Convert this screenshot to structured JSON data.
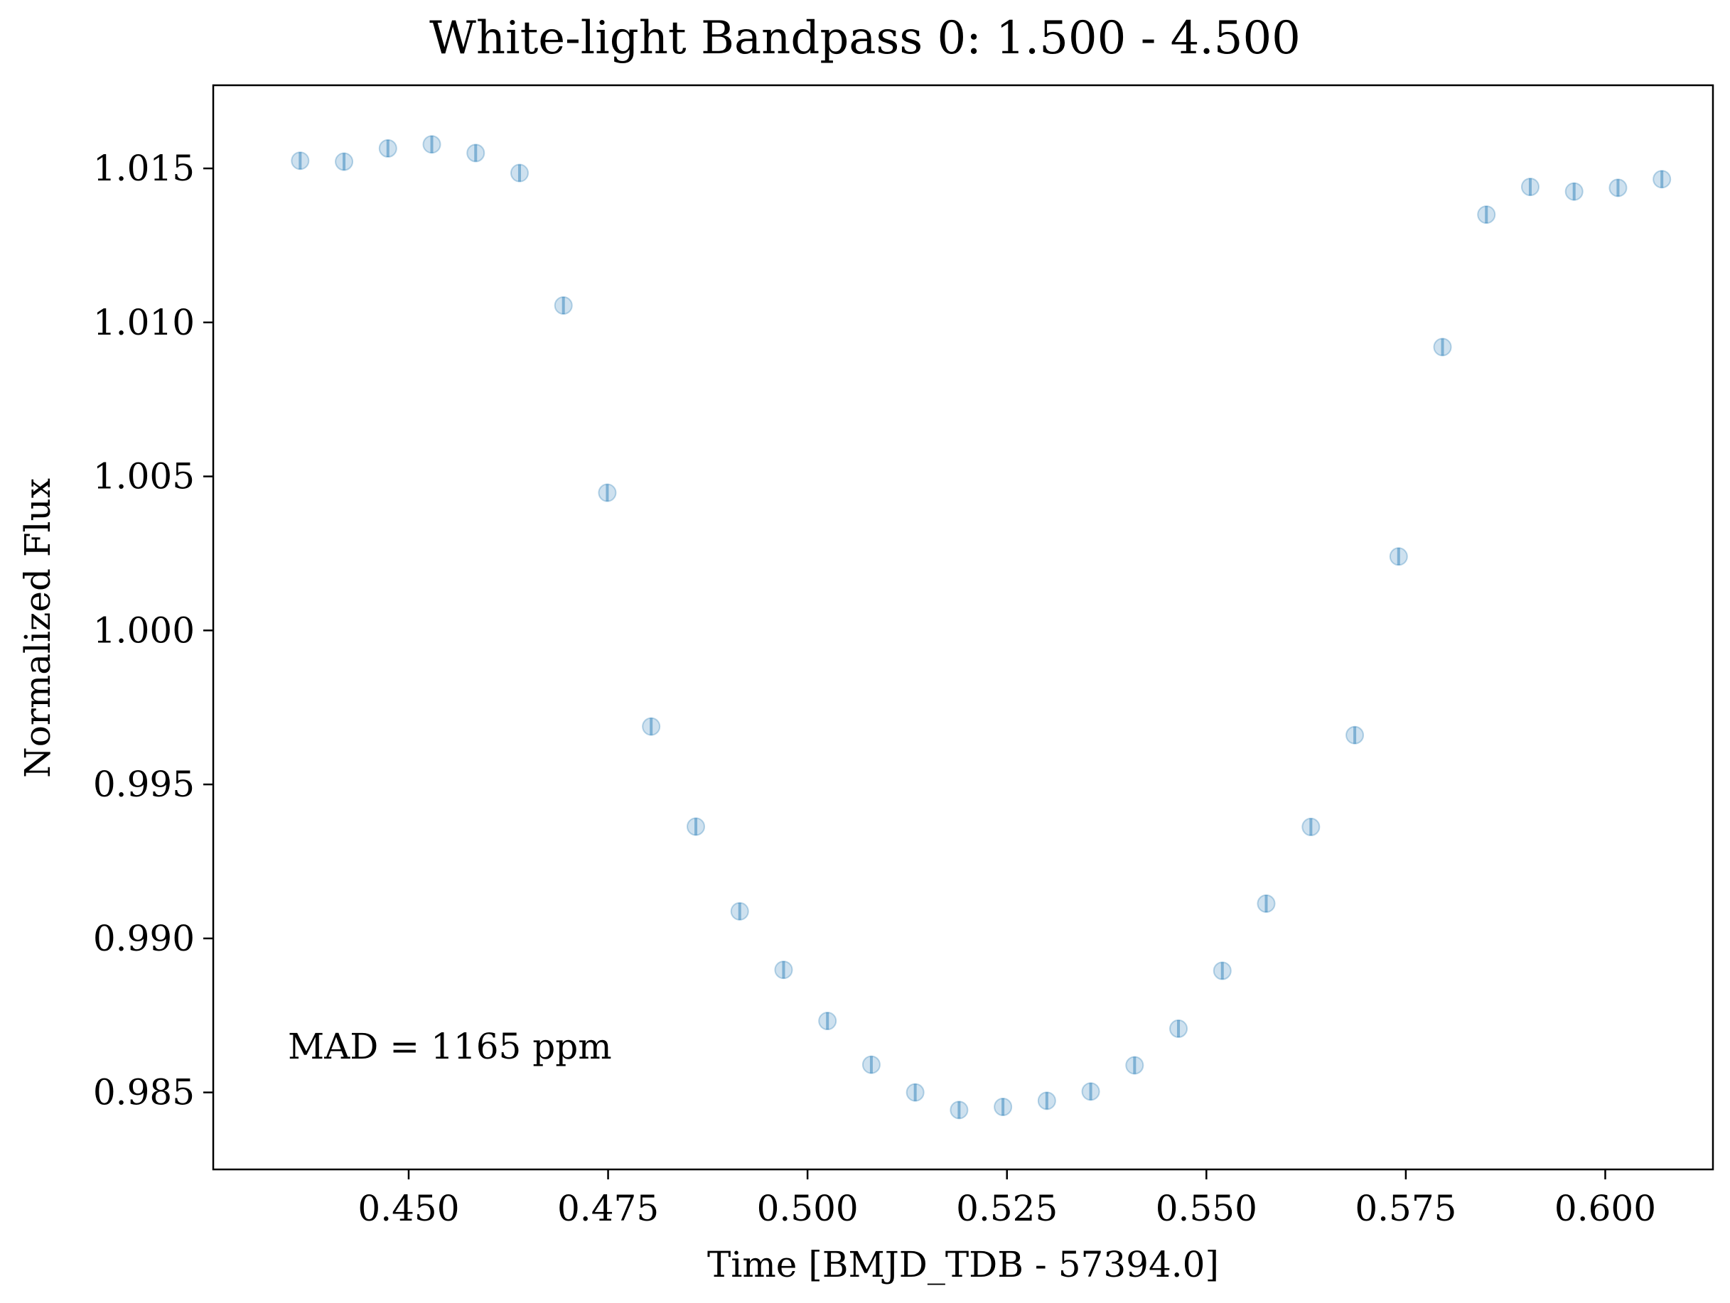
{
  "chart_data": {
    "type": "scatter",
    "title": "White-light Bandpass 0: 1.500 - 4.500",
    "xlabel": "Time [BMJD_TDB - 57394.0]",
    "ylabel": "Normalized Flux",
    "xlim": [
      0.4255,
      0.6135
    ],
    "ylim": [
      0.9825,
      1.0177
    ],
    "xticks": [
      0.45,
      0.475,
      0.5,
      0.525,
      0.55,
      0.575,
      0.6
    ],
    "xtick_labels": [
      "0.450",
      "0.475",
      "0.500",
      "0.525",
      "0.550",
      "0.575",
      "0.600"
    ],
    "yticks": [
      0.985,
      0.99,
      0.995,
      1.0,
      1.005,
      1.01,
      1.015
    ],
    "ytick_labels": [
      "0.985",
      "0.990",
      "0.995",
      "1.000",
      "1.005",
      "1.010",
      "1.015"
    ],
    "grid": false,
    "marker_color": "#1f77b4",
    "annotation": "MAD = 1165 ppm",
    "series": [
      {
        "x": [
          0.4364,
          0.4419,
          0.4474,
          0.4529,
          0.4584,
          0.4639,
          0.4694,
          0.4749,
          0.4804,
          0.486,
          0.4915,
          0.497,
          0.5025,
          0.508,
          0.5135,
          0.519,
          0.5245,
          0.53,
          0.5355,
          0.541,
          0.5465,
          0.552,
          0.5575,
          0.5631,
          0.5686,
          0.5741,
          0.5796,
          0.5851,
          0.5906,
          0.5961,
          0.6016,
          0.6071
        ],
        "y": [
          1.01525,
          1.01522,
          1.01565,
          1.01578,
          1.0155,
          1.01485,
          1.01055,
          1.00447,
          0.99688,
          0.99363,
          0.99088,
          0.98898,
          0.98732,
          0.9859,
          0.985,
          0.98443,
          0.98453,
          0.98473,
          0.98503,
          0.98588,
          0.98707,
          0.98895,
          0.99113,
          0.99362,
          0.9966,
          1.0024,
          1.0092,
          1.0135,
          1.0144,
          1.01425,
          1.01437,
          1.01465
        ],
        "yerr": [
          0.00028,
          0.00028,
          0.00028,
          0.00028,
          0.00028,
          0.00028,
          0.00028,
          0.00028,
          0.00028,
          0.00028,
          0.00028,
          0.00028,
          0.00028,
          0.00028,
          0.00028,
          0.00028,
          0.00028,
          0.00028,
          0.00028,
          0.00028,
          0.00028,
          0.00028,
          0.00028,
          0.00028,
          0.00028,
          0.00028,
          0.00028,
          0.00028,
          0.00028,
          0.00028,
          0.00028,
          0.00028
        ]
      }
    ]
  }
}
